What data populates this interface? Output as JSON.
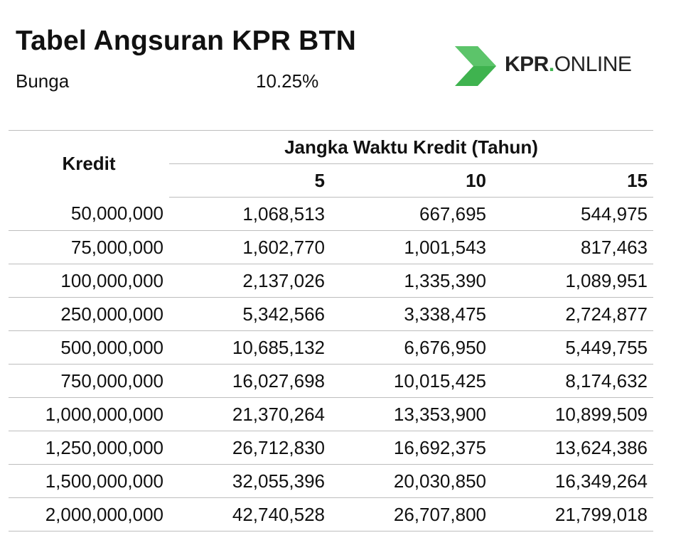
{
  "header": {
    "title": "Tabel Angsuran KPR BTN",
    "rate_label": "Bunga",
    "rate_value": "10.25%"
  },
  "logo": {
    "name": "KPR.ONLINE",
    "part_bold": "KPR",
    "part_dot": ".",
    "part_light": "ONLINE",
    "accent_color": "#3fb34f"
  },
  "table": {
    "kredit_header": "Kredit",
    "group_header": "Jangka Waktu Kredit (Tahun)",
    "years": [
      "5",
      "10",
      "15"
    ],
    "rows": [
      {
        "kredit": "50,000,000",
        "values": [
          "1,068,513",
          "667,695",
          "544,975"
        ]
      },
      {
        "kredit": "75,000,000",
        "values": [
          "1,602,770",
          "1,001,543",
          "817,463"
        ]
      },
      {
        "kredit": "100,000,000",
        "values": [
          "2,137,026",
          "1,335,390",
          "1,089,951"
        ]
      },
      {
        "kredit": "250,000,000",
        "values": [
          "5,342,566",
          "3,338,475",
          "2,724,877"
        ]
      },
      {
        "kredit": "500,000,000",
        "values": [
          "10,685,132",
          "6,676,950",
          "5,449,755"
        ]
      },
      {
        "kredit": "750,000,000",
        "values": [
          "16,027,698",
          "10,015,425",
          "8,174,632"
        ]
      },
      {
        "kredit": "1,000,000,000",
        "values": [
          "21,370,264",
          "13,353,900",
          "10,899,509"
        ]
      },
      {
        "kredit": "1,250,000,000",
        "values": [
          "26,712,830",
          "16,692,375",
          "13,624,386"
        ]
      },
      {
        "kredit": "1,500,000,000",
        "values": [
          "32,055,396",
          "20,030,850",
          "16,349,264"
        ]
      },
      {
        "kredit": "2,000,000,000",
        "values": [
          "42,740,528",
          "26,707,800",
          "21,799,018"
        ]
      }
    ]
  }
}
